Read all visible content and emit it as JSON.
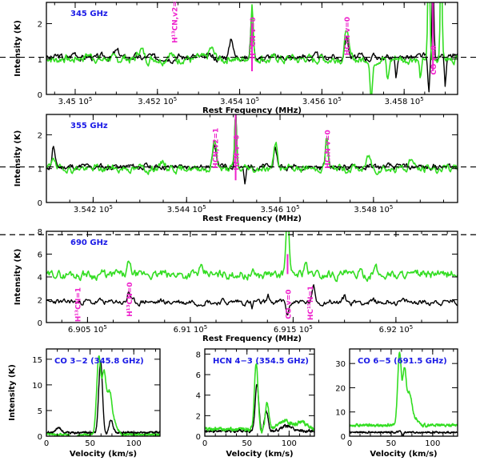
{
  "chart_data": [
    {
      "id": "p345",
      "type": "line",
      "title": "345 GHz",
      "xlabel": "Rest Frequency (MHz)",
      "ylabel": "Intensity (K)",
      "xlim": [
        344830,
        345830
      ],
      "ylim": [
        0,
        2.6
      ],
      "xticks": [
        {
          "v": 344900,
          "label": "3.45 10⁵"
        },
        {
          "v": 345100,
          "label": "3.452 10⁵"
        },
        {
          "v": 345300,
          "label": "3.454 10⁵"
        },
        {
          "v": 345500,
          "label": "3.456 10⁵"
        },
        {
          "v": 345700,
          "label": "3.458 10⁵"
        }
      ],
      "yticks": [
        {
          "v": 0,
          "label": "0"
        },
        {
          "v": 1,
          "label": "1"
        },
        {
          "v": 2,
          "label": "2"
        }
      ],
      "reference_line": 1.05,
      "series": [
        {
          "name": "black spectrum",
          "color": "#000000",
          "baseline": 1.05,
          "noise": 0.08,
          "seed": 3,
          "lines": [
            [
              344900,
              0.12,
              8
            ],
            [
              345000,
              0.15,
              10
            ],
            [
              345280,
              0.6,
              6
            ],
            [
              345330,
              1.4,
              4
            ],
            [
              345560,
              0.55,
              6
            ],
            [
              345770,
              2.5,
              3
            ]
          ],
          "dips": [
            [
              345680,
              0.6,
              3
            ],
            [
              345760,
              1.0,
              3
            ],
            [
              345800,
              0.8,
              3
            ]
          ]
        },
        {
          "name": "green spectrum",
          "color": "#33dd22",
          "baseline": 1.0,
          "noise": 0.1,
          "seed": 7,
          "lines": [
            [
              344930,
              0.15,
              10
            ],
            [
              345060,
              0.25,
              10
            ],
            [
              345130,
              0.15,
              8
            ],
            [
              345230,
              0.3,
              8
            ],
            [
              345330,
              1.6,
              4
            ],
            [
              345560,
              0.9,
              6
            ],
            [
              345760,
              3.5,
              3
            ],
            [
              345790,
              3.5,
              3
            ]
          ],
          "dips": [
            [
              345620,
              1.2,
              4
            ],
            [
              345660,
              0.6,
              4
            ],
            [
              345740,
              0.5,
              4
            ]
          ]
        }
      ],
      "markers": [
        {
          "v": 345330,
          "y": 2.0,
          "label": "H¹³CN v=0"
        },
        {
          "v": 345770,
          "y": 2.6,
          "label": "CO v=0"
        }
      ],
      "annotations": [
        {
          "v": 345140,
          "y": 1.45,
          "label": "H¹³CN,v2=1"
        },
        {
          "v": 345330,
          "y": 1.0,
          "label": "H¹³CN v=0"
        },
        {
          "v": 345560,
          "y": 1.1,
          "label": "HC₃N v=0"
        },
        {
          "v": 345770,
          "y": 0.55,
          "label": "CO v=0"
        }
      ]
    },
    {
      "id": "p355",
      "type": "line",
      "title": "355 GHz",
      "xlabel": "Rest Frequency (MHz)",
      "ylabel": "Intensity (K)",
      "xlim": [
        354100,
        354980
      ],
      "ylim": [
        0,
        2.6
      ],
      "xticks": [
        {
          "v": 354200,
          "label": "3.542 10⁵"
        },
        {
          "v": 354400,
          "label": "3.544 10⁵"
        },
        {
          "v": 354600,
          "label": "3.546 10⁵"
        },
        {
          "v": 354800,
          "label": "3.548 10⁵"
        }
      ],
      "yticks": [
        {
          "v": 0,
          "label": "0"
        },
        {
          "v": 1,
          "label": "1"
        },
        {
          "v": 2,
          "label": "2"
        }
      ],
      "reference_line": 1.05,
      "series": [
        {
          "name": "black spectrum",
          "color": "#000000",
          "baseline": 1.05,
          "noise": 0.07,
          "seed": 11,
          "lines": [
            [
              354115,
              0.6,
              4
            ],
            [
              354460,
              0.6,
              6
            ],
            [
              354505,
              1.7,
              3
            ],
            [
              354590,
              0.5,
              5
            ],
            [
              354700,
              0.8,
              4
            ]
          ],
          "dips": [
            [
              354525,
              0.5,
              3
            ]
          ]
        },
        {
          "name": "green spectrum",
          "color": "#33dd22",
          "baseline": 1.0,
          "noise": 0.09,
          "seed": 19,
          "lines": [
            [
              354115,
              0.4,
              5
            ],
            [
              354350,
              0.25,
              6
            ],
            [
              354460,
              0.8,
              6
            ],
            [
              354505,
              1.6,
              3
            ],
            [
              354590,
              0.8,
              5
            ],
            [
              354700,
              0.9,
              4
            ],
            [
              354790,
              0.35,
              6
            ],
            [
              354880,
              0.3,
              6
            ]
          ],
          "dips": []
        }
      ],
      "markers": [
        {
          "v": 354505,
          "y": 2.6,
          "label": "HCN v=0"
        }
      ],
      "annotations": [
        {
          "v": 354460,
          "y": 1.0,
          "label": "HCN,v2=1"
        },
        {
          "v": 354505,
          "y": 0.95,
          "label": "HCN v=0"
        },
        {
          "v": 354700,
          "y": 1.0,
          "label": "HC₃N v=0"
        }
      ]
    },
    {
      "id": "p690",
      "type": "line",
      "title": "690 GHz",
      "xlabel": "Rest Frequency (MHz)",
      "ylabel": "Intensity (K)",
      "xlim": [
        690300,
        692300
      ],
      "ylim": [
        0,
        8
      ],
      "xticks": [
        {
          "v": 690500,
          "label": "6.905 10⁵"
        },
        {
          "v": 691000,
          "label": "6.91 10⁵"
        },
        {
          "v": 691500,
          "label": "6.915 10⁵"
        },
        {
          "v": 692000,
          "label": "6.92 10⁵"
        }
      ],
      "yticks": [
        {
          "v": 0,
          "label": "0"
        },
        {
          "v": 2,
          "label": "2"
        },
        {
          "v": 4,
          "label": "4"
        },
        {
          "v": 6,
          "label": "6"
        },
        {
          "v": 8,
          "label": "8"
        }
      ],
      "reference_line": 7.7,
      "series": [
        {
          "name": "black spectrum",
          "color": "#000000",
          "baseline": 1.8,
          "noise": 0.2,
          "seed": 23,
          "lines": [
            [
              690700,
              1.0,
              8
            ],
            [
              691380,
              0.4,
              8
            ],
            [
              691600,
              1.2,
              10
            ],
            [
              691750,
              0.4,
              10
            ]
          ],
          "dips": [
            [
              691473,
              1.3,
              8
            ],
            [
              691300,
              0.7,
              6
            ]
          ]
        },
        {
          "name": "green spectrum",
          "color": "#33dd22",
          "baseline": 4.2,
          "noise": 0.3,
          "seed": 29,
          "lines": [
            [
              690700,
              0.9,
              12
            ],
            [
              691050,
              0.6,
              12
            ],
            [
              691473,
              6.0,
              10
            ],
            [
              691560,
              1.3,
              10
            ],
            [
              691900,
              0.5,
              12
            ]
          ],
          "dips": []
        }
      ],
      "markers": [
        {
          "v": 691473,
          "y": 6.0,
          "label": "CO v=0"
        }
      ],
      "annotations": [
        {
          "v": 690450,
          "y": 0.05,
          "label": "H¹³CN=1"
        },
        {
          "v": 690700,
          "y": 0.5,
          "label": "H¹³CN=0"
        },
        {
          "v": 691473,
          "y": 0.3,
          "label": "CO v=0"
        },
        {
          "v": 691580,
          "y": 0.2,
          "label": "HC¹⁵N=1"
        }
      ]
    },
    {
      "id": "co32",
      "type": "line",
      "title": "CO 3−2 (345.8 GHz)",
      "xlabel": "Velocity (km/s)",
      "ylabel": "Intensity (K)",
      "xlim": [
        0,
        130
      ],
      "ylim": [
        0,
        17
      ],
      "xticks": [
        {
          "v": 0,
          "label": "0"
        },
        {
          "v": 50,
          "label": "50"
        },
        {
          "v": 100,
          "label": "100"
        }
      ],
      "yticks": [
        {
          "v": 0,
          "label": "0"
        },
        {
          "v": 5,
          "label": "5"
        },
        {
          "v": 10,
          "label": "10"
        },
        {
          "v": 15,
          "label": "15"
        }
      ],
      "series": [
        {
          "name": "black spectrum",
          "color": "#000000",
          "baseline": 0.7,
          "noise": 0.15,
          "seed": 31,
          "lines": [
            [
              14,
              0.9,
              4
            ],
            [
              62,
              14,
              3
            ],
            [
              74,
              2.5,
              3
            ]
          ],
          "dips": [
            [
              68,
              0.5,
              2
            ]
          ]
        },
        {
          "name": "green spectrum",
          "color": "#33dd22",
          "baseline": 0.3,
          "noise": 0.15,
          "seed": 37,
          "lines": [
            [
              60,
              15,
              3.5
            ],
            [
              66,
              11,
              3
            ],
            [
              72,
              8,
              4
            ],
            [
              78,
              2,
              5
            ]
          ],
          "dips": [
            [
              32,
              0.8,
              4
            ]
          ]
        }
      ]
    },
    {
      "id": "hcn43",
      "type": "line",
      "title": "HCN 4−3 (354.5 GHz)",
      "xlabel": "Velocity (km/s)",
      "ylabel": "",
      "xlim": [
        0,
        130
      ],
      "ylim": [
        0,
        8.5
      ],
      "xticks": [
        {
          "v": 0,
          "label": "0"
        },
        {
          "v": 50,
          "label": "50"
        },
        {
          "v": 100,
          "label": "100"
        }
      ],
      "yticks": [
        {
          "v": 0,
          "label": "0"
        },
        {
          "v": 2,
          "label": "2"
        },
        {
          "v": 4,
          "label": "4"
        },
        {
          "v": 6,
          "label": "6"
        },
        {
          "v": 8,
          "label": "8"
        }
      ],
      "series": [
        {
          "name": "black spectrum",
          "color": "#000000",
          "baseline": 0.5,
          "noise": 0.1,
          "seed": 41,
          "lines": [
            [
              62,
              4.5,
              3
            ],
            [
              73,
              2.0,
              3
            ],
            [
              97,
              0.5,
              8
            ]
          ],
          "dips": [
            [
              67,
              0.2,
              2
            ]
          ]
        },
        {
          "name": "green spectrum",
          "color": "#33dd22",
          "baseline": 0.7,
          "noise": 0.12,
          "seed": 43,
          "lines": [
            [
              61,
              6.4,
              3
            ],
            [
              74,
              2.5,
              3
            ],
            [
              95,
              0.8,
              10
            ],
            [
              115,
              0.7,
              8
            ]
          ],
          "dips": [
            [
              67,
              0.3,
              2
            ]
          ]
        }
      ]
    },
    {
      "id": "co65",
      "type": "line",
      "title": "CO 6−5 (691.5 GHz)",
      "xlabel": "Velocity (km/s)",
      "ylabel": "",
      "xlim": [
        0,
        130
      ],
      "ylim": [
        0,
        36
      ],
      "xticks": [
        {
          "v": 0,
          "label": "0"
        },
        {
          "v": 50,
          "label": "50"
        },
        {
          "v": 100,
          "label": "100"
        }
      ],
      "yticks": [
        {
          "v": 0,
          "label": "0"
        },
        {
          "v": 10,
          "label": "10"
        },
        {
          "v": 20,
          "label": "20"
        },
        {
          "v": 30,
          "label": "30"
        }
      ],
      "series": [
        {
          "name": "black spectrum",
          "color": "#000000",
          "baseline": 1.6,
          "noise": 0.25,
          "seed": 47,
          "lines": [
            [
              62,
              0.6,
              4
            ]
          ],
          "dips": [
            [
              64,
              1.6,
              2
            ]
          ]
        },
        {
          "name": "green spectrum",
          "color": "#33dd22",
          "baseline": 4.5,
          "noise": 0.4,
          "seed": 53,
          "lines": [
            [
              60,
              30,
              3
            ],
            [
              66,
              22,
              3
            ],
            [
              72,
              13,
              4
            ],
            [
              79,
              2.5,
              5
            ]
          ],
          "dips": []
        }
      ]
    }
  ]
}
